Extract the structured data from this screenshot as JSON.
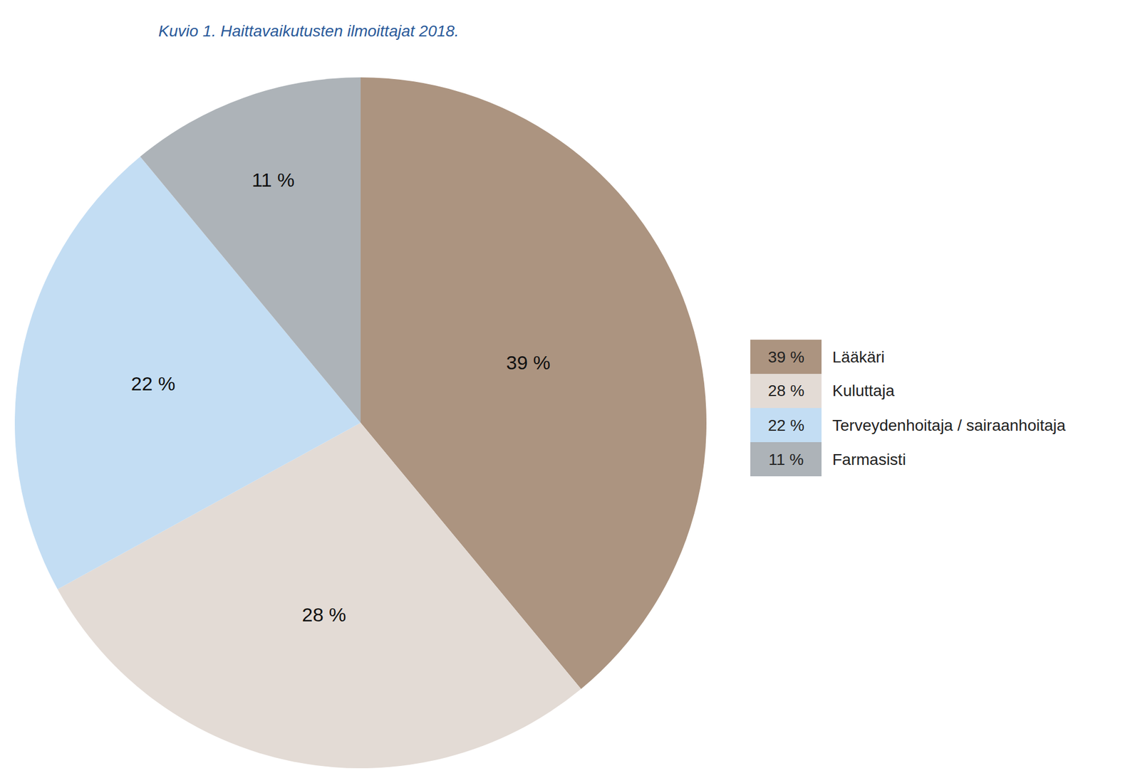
{
  "chart_data": {
    "type": "pie",
    "title": "Kuvio 1. Haittavaikutusten ilmoittajat 2018.",
    "categories": [
      "Lääkäri",
      "Kuluttaja",
      "Terveydenhoitaja / sairaanhoitaja",
      "Farmasisti"
    ],
    "values": [
      39,
      28,
      22,
      11
    ],
    "value_labels": [
      "39 %",
      "28 %",
      "22 %",
      "11 %"
    ],
    "colors": [
      "#ac9480",
      "#e3dbd5",
      "#c3ddf3",
      "#adb3b8"
    ],
    "data_labels": true,
    "legend": "right"
  }
}
